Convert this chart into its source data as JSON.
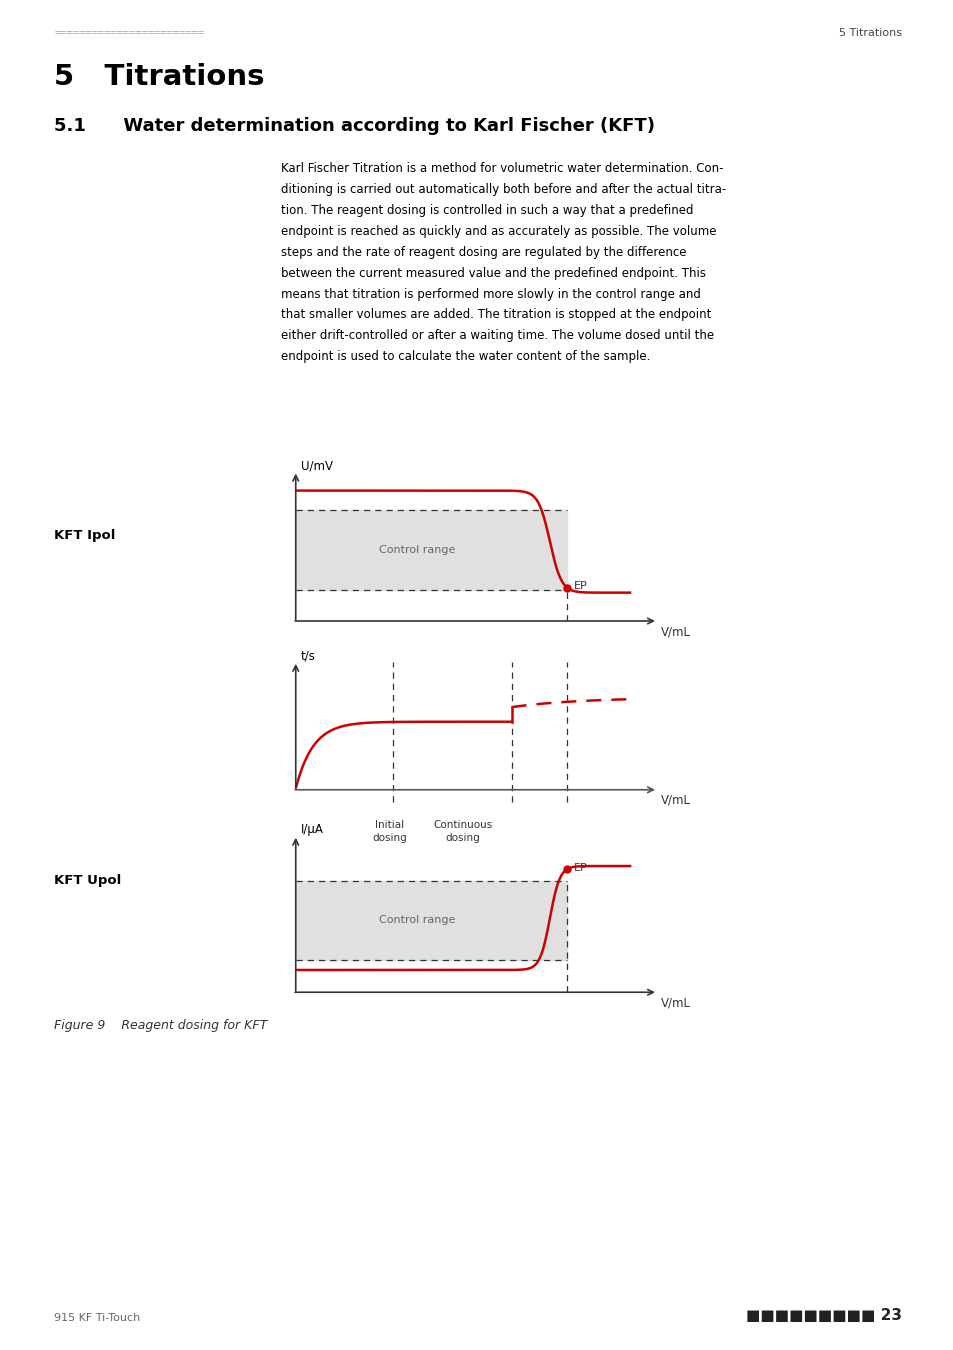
{
  "page_dots_left": "========================",
  "page_title_right": "5 Titrations",
  "page_number": "23",
  "page_footer_left": "915 KF Ti-Touch",
  "chapter_heading": "5   Titrations",
  "section_heading": "5.1      Water determination according to Karl Fischer (KFT)",
  "body_text_lines": [
    "Karl Fischer Titration is a method for volumetric water determination. Con-",
    "ditioning is carried out automatically both before and after the actual titra-",
    "tion. The reagent dosing is controlled in such a way that a predefined",
    "endpoint is reached as quickly and as accurately as possible. The volume",
    "steps and the rate of reagent dosing are regulated by the difference",
    "between the current measured value and the predefined endpoint. This",
    "means that titration is performed more slowly in the control range and",
    "that smaller volumes are added. The titration is stopped at the endpoint",
    "either drift-controlled or after a waiting time. The volume dosed until the",
    "endpoint is used to calculate the water content of the sample."
  ],
  "fig_caption": "Figure 9    Reagent dosing for KFT",
  "kft_ipol_label": "KFT Ipol",
  "kft_upol_label": "KFT Upol",
  "control_range_text": "Control range",
  "ep_label": "EP",
  "initial_dosing_label": "Initial\ndosing",
  "continuous_dosing_label": "Continuous\ndosing",
  "upol_ylabel": "I/μA",
  "ipol_ylabel": "U/mV",
  "time_ylabel": "t/s",
  "xlabel": "V/mL",
  "background_color": "#ffffff",
  "curve_color": "#cc0000",
  "control_range_fill": "#e0e0e0",
  "axis_color": "#333333",
  "label_color": "#333333",
  "header_dot_color": "#aaaaaa",
  "footer_color": "#666666"
}
